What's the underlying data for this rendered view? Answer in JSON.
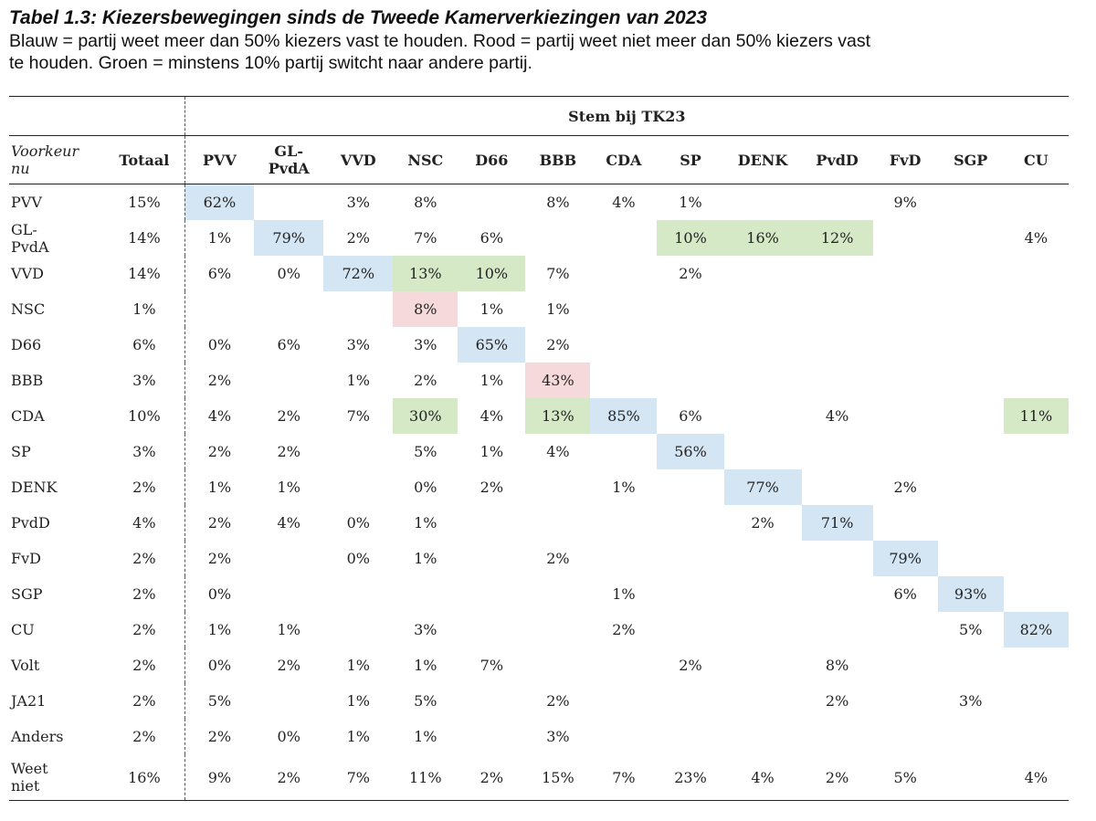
{
  "title": "Tabel 1.3: Kiezersbewegingen sinds de Tweede Kamerverkiezingen van 2023",
  "subtitle_line1": "Blauw = partij weet meer dan 50% kiezers vast te houden. Rood = partij weet niet meer dan 50% kiezers vast",
  "subtitle_line2": "te houden. Groen = minstens 10% partij switcht naar andere partij.",
  "table": {
    "group_header": "Stem bij TK23",
    "row_header_label": [
      "Voorkeur",
      "nu"
    ],
    "total_header": "Totaal",
    "columns": [
      "PVV",
      [
        "GL-",
        "PvdA"
      ],
      "VVD",
      "NSC",
      "D66",
      "BBB",
      "CDA",
      "SP",
      "DENK",
      "PvdD",
      "FvD",
      "SGP",
      "CU"
    ],
    "rows": [
      {
        "label": [
          "PVV"
        ],
        "total": "15%",
        "cells": [
          "62%",
          "",
          "3%",
          "8%",
          "",
          "8%",
          "4%",
          "1%",
          "",
          "",
          "9%",
          "",
          ""
        ],
        "colors": [
          "blue",
          "",
          "",
          "",
          "",
          "",
          "",
          "",
          "",
          "",
          "",
          "",
          ""
        ]
      },
      {
        "label": [
          "GL-",
          "PvdA"
        ],
        "total": "14%",
        "cells": [
          "1%",
          "79%",
          "2%",
          "7%",
          "6%",
          "",
          "",
          "10%",
          "16%",
          "12%",
          "",
          "",
          "4%"
        ],
        "colors": [
          "",
          "blue",
          "",
          "",
          "",
          "",
          "",
          "green",
          "green",
          "green",
          "",
          "",
          ""
        ]
      },
      {
        "label": [
          "VVD"
        ],
        "total": "14%",
        "cells": [
          "6%",
          "0%",
          "72%",
          "13%",
          "10%",
          "7%",
          "",
          "2%",
          "",
          "",
          "",
          "",
          ""
        ],
        "colors": [
          "",
          "",
          "blue",
          "green",
          "green",
          "",
          "",
          "",
          "",
          "",
          "",
          "",
          ""
        ]
      },
      {
        "label": [
          "NSC"
        ],
        "total": "1%",
        "cells": [
          "",
          "",
          "",
          "8%",
          "1%",
          "1%",
          "",
          "",
          "",
          "",
          "",
          "",
          ""
        ],
        "colors": [
          "",
          "",
          "",
          "red",
          "",
          "",
          "",
          "",
          "",
          "",
          "",
          "",
          ""
        ]
      },
      {
        "label": [
          "D66"
        ],
        "total": "6%",
        "cells": [
          "0%",
          "6%",
          "3%",
          "3%",
          "65%",
          "2%",
          "",
          "",
          "",
          "",
          "",
          "",
          ""
        ],
        "colors": [
          "",
          "",
          "",
          "",
          "blue",
          "",
          "",
          "",
          "",
          "",
          "",
          "",
          ""
        ]
      },
      {
        "label": [
          "BBB"
        ],
        "total": "3%",
        "cells": [
          "2%",
          "",
          "1%",
          "2%",
          "1%",
          "43%",
          "",
          "",
          "",
          "",
          "",
          "",
          ""
        ],
        "colors": [
          "",
          "",
          "",
          "",
          "",
          "red",
          "",
          "",
          "",
          "",
          "",
          "",
          ""
        ]
      },
      {
        "label": [
          "CDA"
        ],
        "total": "10%",
        "cells": [
          "4%",
          "2%",
          "7%",
          "30%",
          "4%",
          "13%",
          "85%",
          "6%",
          "",
          "4%",
          "",
          "",
          "11%"
        ],
        "colors": [
          "",
          "",
          "",
          "green",
          "",
          "green",
          "blue",
          "",
          "",
          "",
          "",
          "",
          "green"
        ]
      },
      {
        "label": [
          "SP"
        ],
        "total": "3%",
        "cells": [
          "2%",
          "2%",
          "",
          "5%",
          "1%",
          "4%",
          "",
          "56%",
          "",
          "",
          "",
          "",
          ""
        ],
        "colors": [
          "",
          "",
          "",
          "",
          "",
          "",
          "",
          "blue",
          "",
          "",
          "",
          "",
          ""
        ]
      },
      {
        "label": [
          "DENK"
        ],
        "total": "2%",
        "cells": [
          "1%",
          "1%",
          "",
          "0%",
          "2%",
          "",
          "1%",
          "",
          "77%",
          "",
          "2%",
          "",
          ""
        ],
        "colors": [
          "",
          "",
          "",
          "",
          "",
          "",
          "",
          "",
          "blue",
          "",
          "",
          "",
          ""
        ]
      },
      {
        "label": [
          "PvdD"
        ],
        "total": "4%",
        "cells": [
          "2%",
          "4%",
          "0%",
          "1%",
          "",
          "",
          "",
          "",
          "2%",
          "71%",
          "",
          "",
          ""
        ],
        "colors": [
          "",
          "",
          "",
          "",
          "",
          "",
          "",
          "",
          "",
          "blue",
          "",
          "",
          ""
        ]
      },
      {
        "label": [
          "FvD"
        ],
        "total": "2%",
        "cells": [
          "2%",
          "",
          "0%",
          "1%",
          "",
          "2%",
          "",
          "",
          "",
          "",
          "79%",
          "",
          ""
        ],
        "colors": [
          "",
          "",
          "",
          "",
          "",
          "",
          "",
          "",
          "",
          "",
          "blue",
          "",
          ""
        ]
      },
      {
        "label": [
          "SGP"
        ],
        "total": "2%",
        "cells": [
          "0%",
          "",
          "",
          "",
          "",
          "",
          "1%",
          "",
          "",
          "",
          "6%",
          "93%",
          ""
        ],
        "colors": [
          "",
          "",
          "",
          "",
          "",
          "",
          "",
          "",
          "",
          "",
          "",
          "blue",
          ""
        ]
      },
      {
        "label": [
          "CU"
        ],
        "total": "2%",
        "cells": [
          "1%",
          "1%",
          "",
          "3%",
          "",
          "",
          "2%",
          "",
          "",
          "",
          "",
          "5%",
          "82%"
        ],
        "colors": [
          "",
          "",
          "",
          "",
          "",
          "",
          "",
          "",
          "",
          "",
          "",
          "",
          "blue"
        ]
      },
      {
        "label": [
          "Volt"
        ],
        "total": "2%",
        "cells": [
          "0%",
          "2%",
          "1%",
          "1%",
          "7%",
          "",
          "",
          "2%",
          "",
          "8%",
          "",
          "",
          ""
        ],
        "colors": [
          "",
          "",
          "",
          "",
          "",
          "",
          "",
          "",
          "",
          "",
          "",
          "",
          ""
        ]
      },
      {
        "label": [
          "JA21"
        ],
        "total": "2%",
        "cells": [
          "5%",
          "",
          "1%",
          "5%",
          "",
          "2%",
          "",
          "",
          "",
          "2%",
          "",
          "3%",
          ""
        ],
        "colors": [
          "",
          "",
          "",
          "",
          "",
          "",
          "",
          "",
          "",
          "",
          "",
          "",
          ""
        ]
      },
      {
        "label": [
          "Anders"
        ],
        "total": "2%",
        "cells": [
          "2%",
          "0%",
          "1%",
          "1%",
          "",
          "3%",
          "",
          "",
          "",
          "",
          "",
          "",
          ""
        ],
        "colors": [
          "",
          "",
          "",
          "",
          "",
          "",
          "",
          "",
          "",
          "",
          "",
          "",
          ""
        ]
      },
      {
        "label": [
          "Weet",
          "niet"
        ],
        "total": "16%",
        "cells": [
          "9%",
          "2%",
          "7%",
          "11%",
          "2%",
          "15%",
          "7%",
          "23%",
          "4%",
          "2%",
          "5%",
          "",
          "4%"
        ],
        "colors": [
          "",
          "",
          "",
          "",
          "",
          "",
          "",
          "",
          "",
          "",
          "",
          "",
          ""
        ]
      }
    ]
  }
}
